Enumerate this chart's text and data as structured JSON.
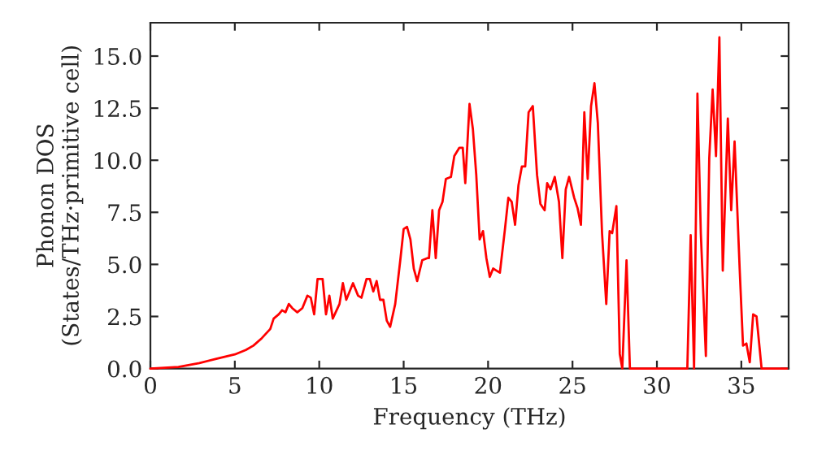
{
  "chart_data": {
    "type": "line",
    "xlabel": "Frequency (THz)",
    "ylabel": "Phonon DOS\n(States/THz·primitive cell)",
    "xlim": [
      0,
      37.8
    ],
    "ylim": [
      0,
      16.6
    ],
    "xticks": [
      0,
      5,
      10,
      15,
      20,
      25,
      30,
      35
    ],
    "yticks": [
      {
        "value": 0,
        "label": "0.0"
      },
      2.5,
      {
        "value": 5,
        "label": "5.0"
      },
      7.5,
      {
        "value": 10,
        "label": "10.0"
      },
      12.5,
      {
        "value": 15,
        "label": "15.0"
      }
    ],
    "grid": false,
    "legend": false,
    "line_style": "solid",
    "marker": "none",
    "series": [
      {
        "color": "#ff0000",
        "x": [
          0,
          1.66,
          2.9,
          3.9,
          5.0,
          5.65,
          6.1,
          6.6,
          7.1,
          7.3,
          7.6,
          7.8,
          8.0,
          8.2,
          8.4,
          8.7,
          9.0,
          9.3,
          9.5,
          9.7,
          9.9,
          10.2,
          10.4,
          10.6,
          10.8,
          11.2,
          11.4,
          11.6,
          12.0,
          12.3,
          12.5,
          12.8,
          13.0,
          13.2,
          13.4,
          13.6,
          13.8,
          14.0,
          14.2,
          14.5,
          14.8,
          15.0,
          15.2,
          15.4,
          15.6,
          15.8,
          16.1,
          16.4,
          16.5,
          16.7,
          16.9,
          17.1,
          17.3,
          17.5,
          17.8,
          18.0,
          18.3,
          18.5,
          18.65,
          18.9,
          19.1,
          19.3,
          19.5,
          19.7,
          19.9,
          20.1,
          20.3,
          20.5,
          20.7,
          21.0,
          21.2,
          21.4,
          21.6,
          21.8,
          22.0,
          22.2,
          22.4,
          22.65,
          22.9,
          23.1,
          23.35,
          23.5,
          23.7,
          23.95,
          24.2,
          24.4,
          24.6,
          24.8,
          25.1,
          25.3,
          25.5,
          25.7,
          25.9,
          26.1,
          26.3,
          26.5,
          26.75,
          27.0,
          27.2,
          27.35,
          27.6,
          27.8,
          27.95,
          28.2,
          28.4,
          31.8,
          32.0,
          32.2,
          32.4,
          32.6,
          32.9,
          33.1,
          33.3,
          33.5,
          33.7,
          33.9,
          34.2,
          34.4,
          34.6,
          34.9,
          35.1,
          35.3,
          35.5,
          35.7,
          35.9,
          36.2,
          37.7
        ],
        "values": [
          0,
          0.08,
          0.26,
          0.47,
          0.68,
          0.89,
          1.1,
          1.46,
          1.9,
          2.4,
          2.6,
          2.8,
          2.7,
          3.1,
          2.9,
          2.7,
          2.9,
          3.5,
          3.4,
          2.6,
          4.3,
          4.3,
          2.6,
          3.5,
          2.4,
          3.1,
          4.1,
          3.3,
          4.1,
          3.5,
          3.4,
          4.3,
          4.3,
          3.7,
          4.2,
          3.3,
          3.3,
          2.3,
          2.0,
          3.1,
          5.2,
          6.7,
          6.8,
          6.2,
          4.8,
          4.2,
          5.2,
          5.3,
          5.3,
          7.6,
          5.3,
          7.6,
          8.0,
          9.1,
          9.2,
          10.2,
          10.6,
          10.6,
          8.9,
          12.7,
          11.5,
          9.3,
          6.2,
          6.6,
          5.3,
          4.4,
          4.8,
          4.7,
          4.6,
          6.7,
          8.2,
          8.0,
          6.9,
          8.8,
          9.7,
          9.7,
          12.3,
          12.6,
          9.3,
          7.9,
          7.6,
          8.9,
          8.6,
          9.2,
          8.0,
          5.3,
          8.6,
          9.2,
          8.2,
          7.7,
          6.9,
          12.3,
          9.1,
          12.6,
          13.7,
          11.8,
          6.5,
          3.1,
          6.6,
          6.5,
          7.8,
          0.7,
          0,
          5.2,
          0,
          0,
          6.4,
          0,
          13.2,
          6.5,
          0.6,
          10.1,
          13.4,
          10.2,
          15.9,
          4.7,
          12.0,
          7.6,
          10.9,
          4.8,
          1.1,
          1.2,
          0.3,
          2.6,
          2.5,
          0,
          0
        ]
      }
    ]
  }
}
